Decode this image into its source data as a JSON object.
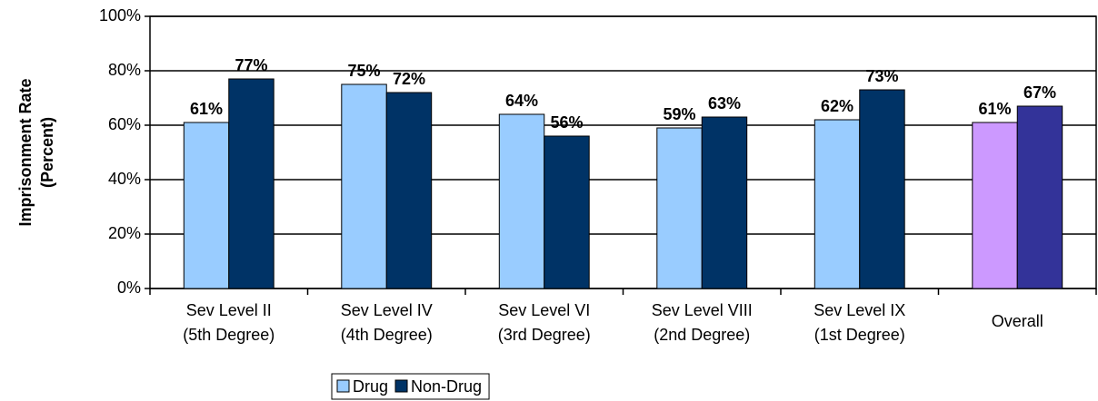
{
  "chart_data": {
    "type": "bar",
    "y_label": [
      "Imprisonment Rate",
      "(Percent)"
    ],
    "categories": [
      [
        "Sev Level II",
        "(5th Degree)"
      ],
      [
        "Sev Level IV",
        "(4th Degree)"
      ],
      [
        "Sev Level VI",
        "(3rd Degree)"
      ],
      [
        "Sev Level VIII",
        "(2nd Degree)"
      ],
      [
        "Sev Level IX",
        "(1st Degree)"
      ],
      [
        "Overall"
      ]
    ],
    "series": [
      {
        "name": "Drug",
        "color": "#99ccff",
        "colors": [
          "#99ccff",
          "#99ccff",
          "#99ccff",
          "#99ccff",
          "#99ccff",
          "#cc99ff"
        ],
        "values": [
          61,
          75,
          64,
          59,
          62,
          61
        ],
        "value_labels": [
          "61%",
          "75%",
          "64%",
          "59%",
          "62%",
          "61%"
        ]
      },
      {
        "name": "Non-Drug",
        "color": "#003366",
        "colors": [
          "#003366",
          "#003366",
          "#003366",
          "#003366",
          "#003366",
          "#333399"
        ],
        "values": [
          77,
          72,
          56,
          63,
          73,
          67
        ],
        "value_labels": [
          "77%",
          "72%",
          "56%",
          "63%",
          "73%",
          "67%"
        ]
      }
    ],
    "ylim": [
      0,
      100
    ],
    "yticks": [
      {
        "value": 0,
        "label": "0%"
      },
      {
        "value": 20,
        "label": "20%"
      },
      {
        "value": 40,
        "label": "40%"
      },
      {
        "value": 60,
        "label": "60%"
      },
      {
        "value": 80,
        "label": "80%"
      },
      {
        "value": 100,
        "label": "100%"
      }
    ],
    "grid": true,
    "legend": "bottom"
  }
}
